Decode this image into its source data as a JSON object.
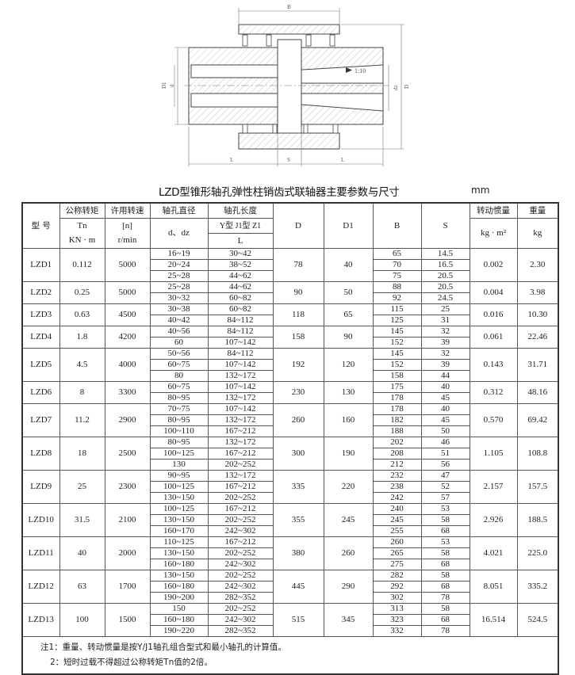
{
  "drawing": {
    "labels": {
      "B": "B",
      "D": "D",
      "D1": "D1",
      "d": "d",
      "dz": "dz",
      "L_left": "L",
      "S": "S",
      "L_right": "L",
      "taper": "1:10"
    }
  },
  "title": "LZD型锥形轴孔弹性柱销齿式联轴器主要参数与尺寸",
  "unit": "mm",
  "headers": {
    "model": "型  号",
    "tn": [
      "公称转矩",
      "Tn",
      "KN · m"
    ],
    "speed": [
      "许用转速",
      "[n]",
      "r/min"
    ],
    "bore_dia": [
      "轴孔直径",
      "d、dz"
    ],
    "bore_len": [
      "轴孔长度",
      "Y型  J1型  Z1",
      "L"
    ],
    "D": "D",
    "D1": "D1",
    "B": "B",
    "S": "S",
    "inertia": [
      "转动惯量",
      "kg · m²"
    ],
    "weight": [
      "重量",
      "kg"
    ]
  },
  "models": [
    {
      "name": "LZD1",
      "tn": "0.112",
      "n": "5000",
      "D": "78",
      "D1": "40",
      "inertia": "0.002",
      "weight": "2.30",
      "rows": [
        [
          "16~19",
          "30~42",
          "65",
          "14.5"
        ],
        [
          "20~24",
          "38~52",
          "70",
          "16.5"
        ],
        [
          "25~28",
          "44~62",
          "75",
          "20.5"
        ]
      ]
    },
    {
      "name": "LZD2",
      "tn": "0.25",
      "n": "5000",
      "D": "90",
      "D1": "50",
      "inertia": "0.004",
      "weight": "3.98",
      "rows": [
        [
          "25~28",
          "44~62",
          "88",
          "20.5"
        ],
        [
          "30~32",
          "60~82",
          "92",
          "24.5"
        ]
      ]
    },
    {
      "name": "LZD3",
      "tn": "0.63",
      "n": "4500",
      "D": "118",
      "D1": "65",
      "inertia": "0.016",
      "weight": "10.30",
      "rows": [
        [
          "30~38",
          "60~82",
          "115",
          "25"
        ],
        [
          "40~42",
          "84~112",
          "125",
          "31"
        ]
      ]
    },
    {
      "name": "LZD4",
      "tn": "1.8",
      "n": "4200",
      "D": "158",
      "D1": "90",
      "inertia": "0.061",
      "weight": "22.46",
      "rows": [
        [
          "40~56",
          "84~112",
          "145",
          "32"
        ],
        [
          "60",
          "107~142",
          "152",
          "39"
        ]
      ]
    },
    {
      "name": "LZD5",
      "tn": "4.5",
      "n": "4000",
      "D": "192",
      "D1": "120",
      "inertia": "0.143",
      "weight": "31.71",
      "rows": [
        [
          "50~56",
          "84~112",
          "145",
          "32"
        ],
        [
          "60~75",
          "107~142",
          "152",
          "39"
        ],
        [
          "80",
          "132~172",
          "158",
          "44"
        ]
      ]
    },
    {
      "name": "LZD6",
      "tn": "8",
      "n": "3300",
      "D": "230",
      "D1": "130",
      "inertia": "0.312",
      "weight": "48.16",
      "rows": [
        [
          "60~75",
          "107~142",
          "175",
          "40"
        ],
        [
          "80~95",
          "132~172",
          "178",
          "45"
        ]
      ]
    },
    {
      "name": "LZD7",
      "tn": "11.2",
      "n": "2900",
      "D": "260",
      "D1": "160",
      "inertia": "0.570",
      "weight": "69.42",
      "rows": [
        [
          "70~75",
          "107~142",
          "178",
          "40"
        ],
        [
          "80~95",
          "132~172",
          "182",
          "45"
        ],
        [
          "100~110",
          "167~212",
          "188",
          "50"
        ]
      ]
    },
    {
      "name": "LZD8",
      "tn": "18",
      "n": "2500",
      "D": "300",
      "D1": "190",
      "inertia": "1.105",
      "weight": "108.8",
      "rows": [
        [
          "80~95",
          "132~172",
          "202",
          "46"
        ],
        [
          "100~125",
          "167~212",
          "208",
          "51"
        ],
        [
          "130",
          "202~252",
          "212",
          "56"
        ]
      ]
    },
    {
      "name": "LZD9",
      "tn": "25",
      "n": "2300",
      "D": "335",
      "D1": "220",
      "inertia": "2.157",
      "weight": "157.5",
      "rows": [
        [
          "90~95",
          "132~172",
          "232",
          "47"
        ],
        [
          "100~125",
          "167~212",
          "238",
          "52"
        ],
        [
          "130~150",
          "202~252",
          "242",
          "57"
        ]
      ]
    },
    {
      "name": "LZD10",
      "tn": "31.5",
      "n": "2100",
      "D": "355",
      "D1": "245",
      "inertia": "2.926",
      "weight": "188.5",
      "rows": [
        [
          "100~125",
          "167~212",
          "240",
          "53"
        ],
        [
          "130~150",
          "202~252",
          "245",
          "58"
        ],
        [
          "160~170",
          "242~302",
          "255",
          "68"
        ]
      ]
    },
    {
      "name": "LZD11",
      "tn": "40",
      "n": "2000",
      "D": "380",
      "D1": "260",
      "inertia": "4.021",
      "weight": "225.0",
      "rows": [
        [
          "110~125",
          "167~212",
          "260",
          "53"
        ],
        [
          "130~150",
          "202~252",
          "265",
          "58"
        ],
        [
          "160~180",
          "242~302",
          "275",
          "68"
        ]
      ]
    },
    {
      "name": "LZD12",
      "tn": "63",
      "n": "1700",
      "D": "445",
      "D1": "290",
      "inertia": "8.051",
      "weight": "335.2",
      "rows": [
        [
          "130~150",
          "202~252",
          "282",
          "58"
        ],
        [
          "160~180",
          "242~302",
          "292",
          "68"
        ],
        [
          "190~200",
          "282~352",
          "302",
          "78"
        ]
      ]
    },
    {
      "name": "LZD13",
      "tn": "100",
      "n": "1500",
      "D": "515",
      "D1": "345",
      "inertia": "16.514",
      "weight": "524.5",
      "rows": [
        [
          "150",
          "202~252",
          "313",
          "58"
        ],
        [
          "160~180",
          "242~302",
          "323",
          "68"
        ],
        [
          "190~220",
          "282~352",
          "332",
          "78"
        ]
      ]
    }
  ],
  "notes": [
    "注1：重量、转动惯量是按Y/J1轴孔组合型式和最小轴孔的计算值。",
    "2：短时过载不得超过公称转矩Tn值的2倍。"
  ]
}
